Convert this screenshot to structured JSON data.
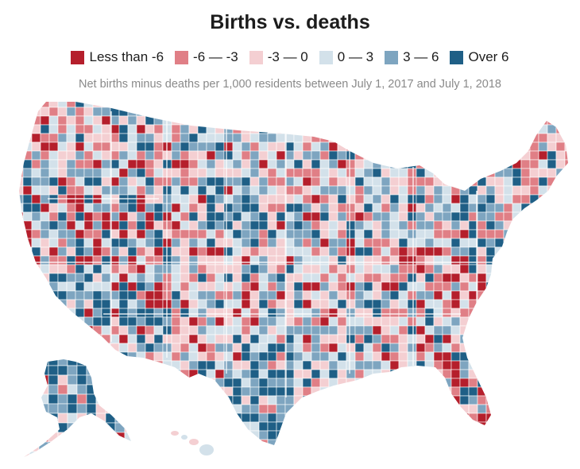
{
  "title": "Births vs. deaths",
  "subtitle": "Net births minus deaths per 1,000 residents between July 1, 2017 and July 1, 2018",
  "legend": [
    {
      "label": "Less than -6",
      "color": "#b51f2c"
    },
    {
      "label": "-6 — -3",
      "color": "#e07f86"
    },
    {
      "label": "-3 — 0",
      "color": "#f4cfd2"
    },
    {
      "label": "0 — 3",
      "color": "#d3e1ea"
    },
    {
      "label": "3 — 6",
      "color": "#7ea5c0"
    },
    {
      "label": "Over 6",
      "color": "#1f5f86"
    }
  ],
  "map": {
    "region": "United States counties",
    "state_border_color": "#ffffff"
  }
}
